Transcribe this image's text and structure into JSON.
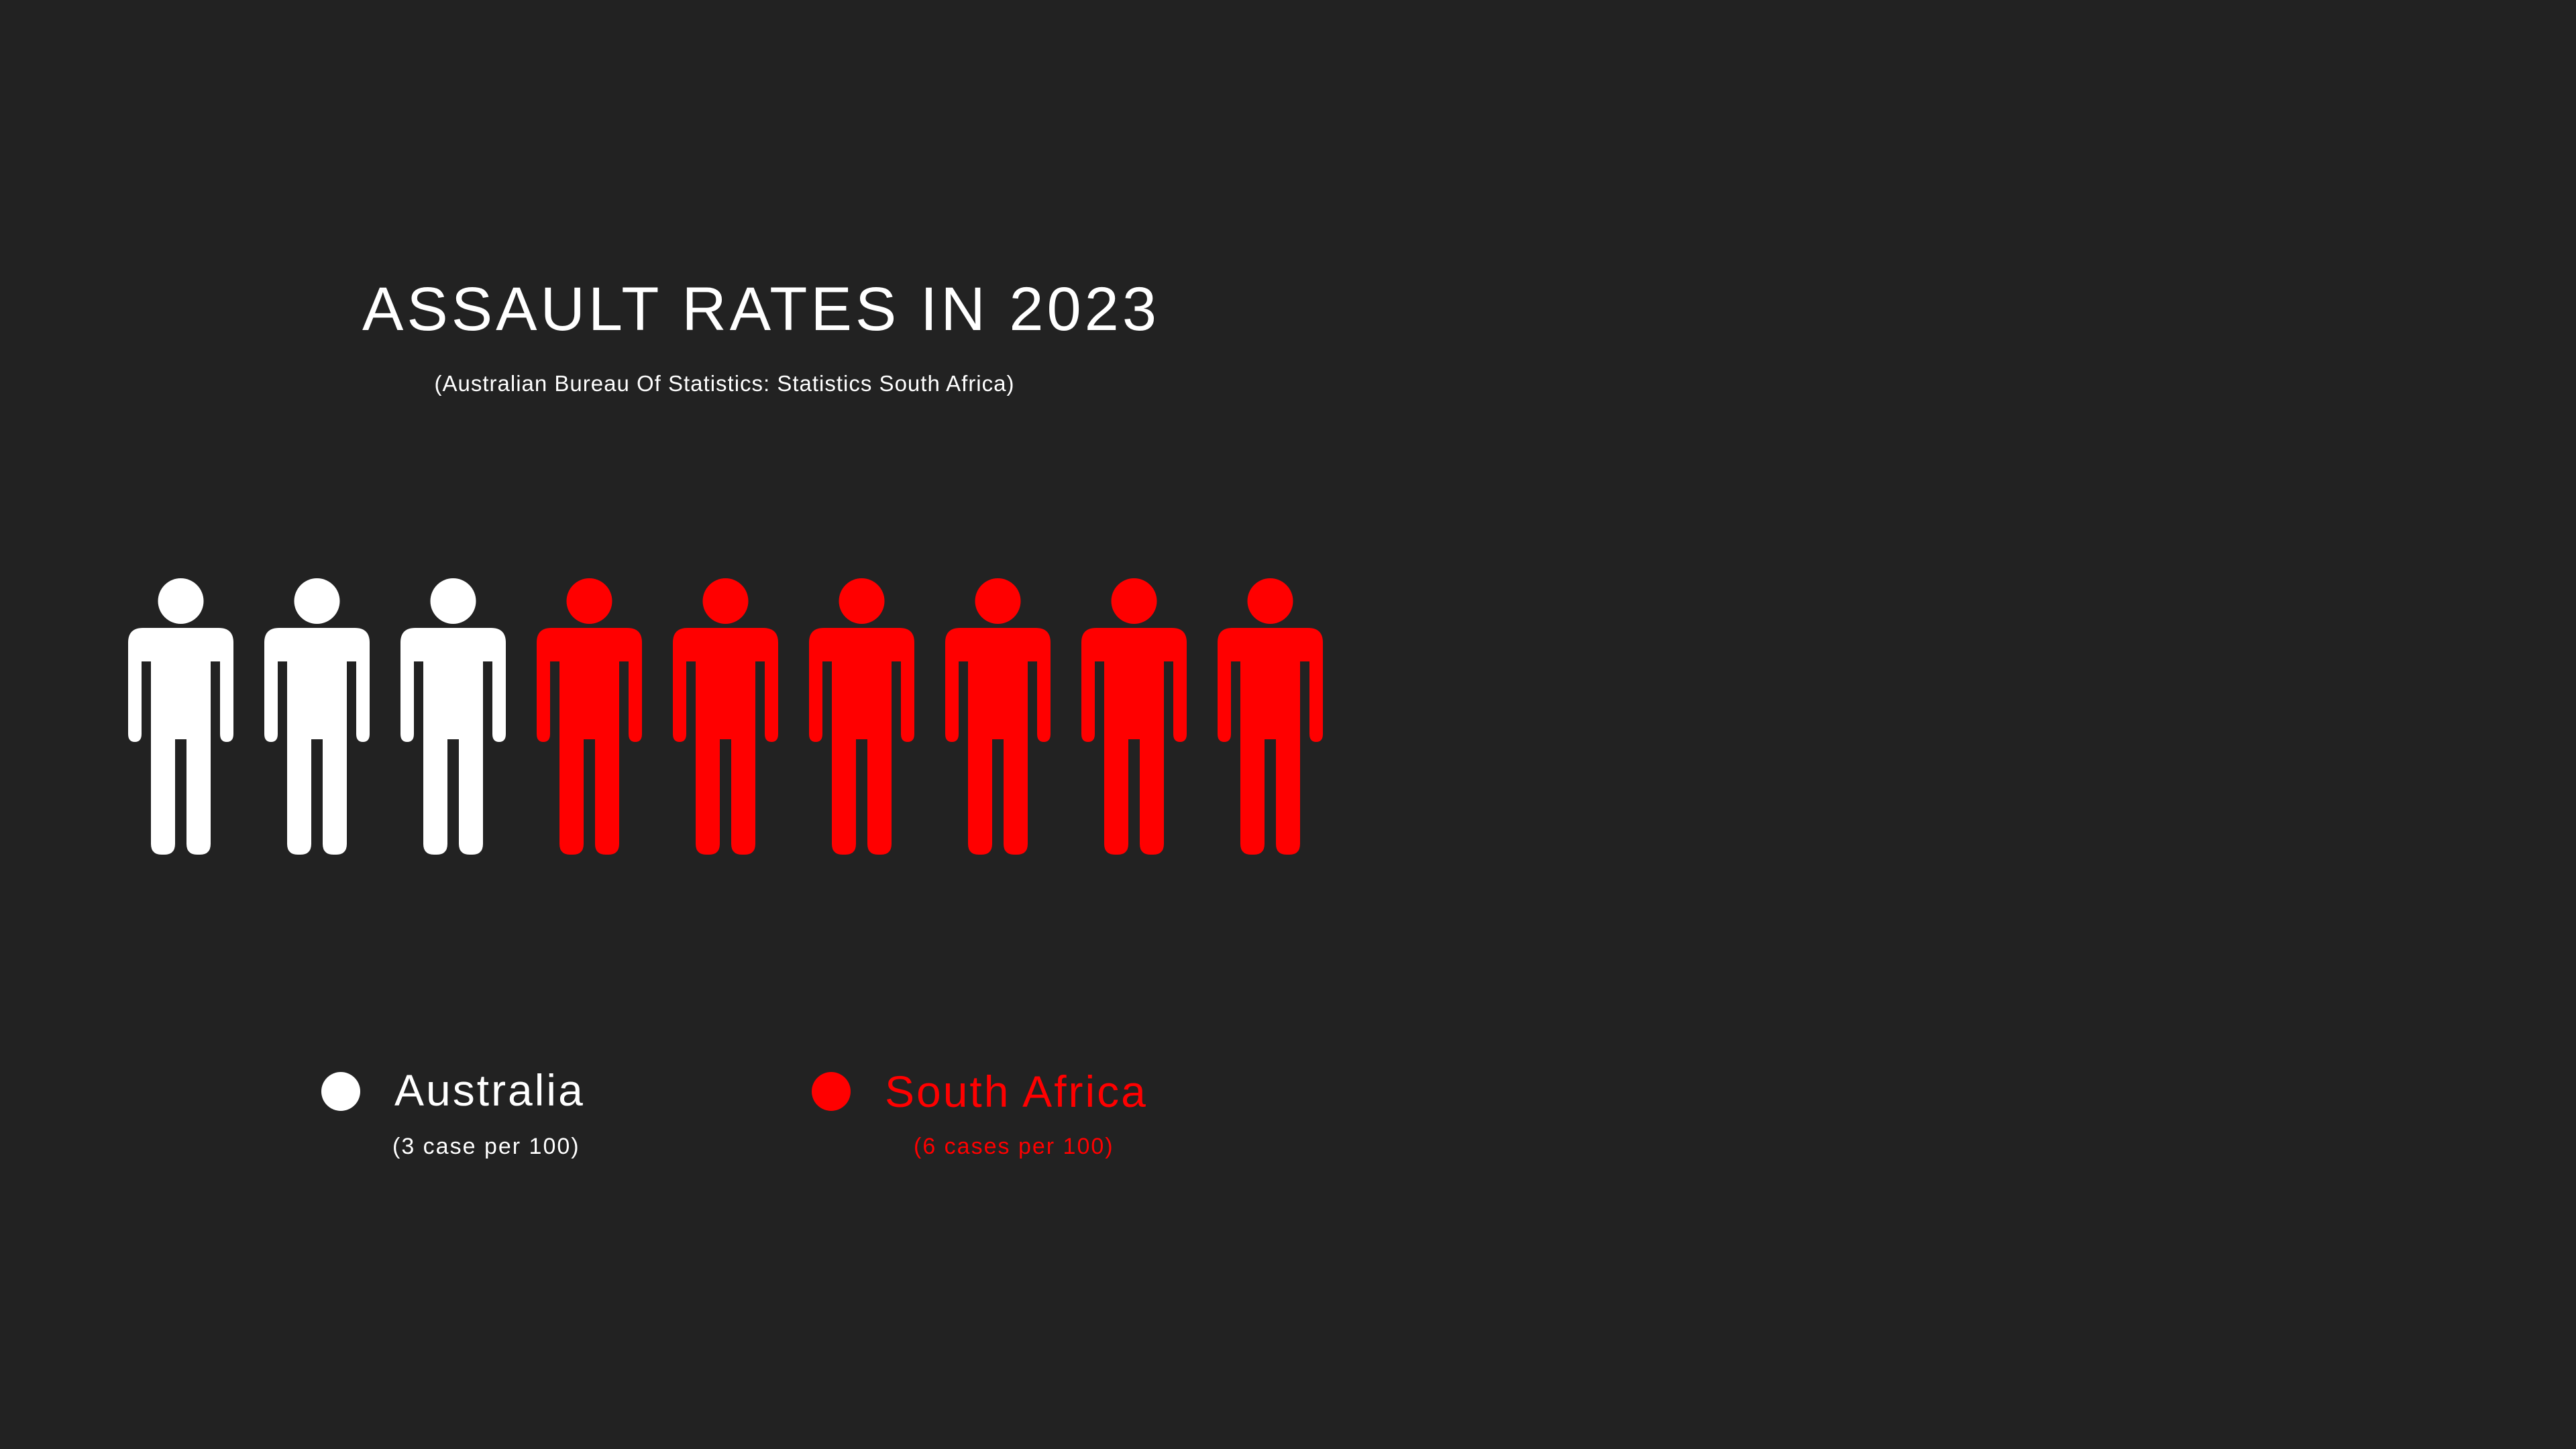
{
  "colors": {
    "background": "#222222",
    "australia": "#ffffff",
    "south_africa": "#ff0000"
  },
  "header": {
    "title": "ASSAULT RATES IN 2023",
    "subtitle": "(Australian Bureau Of Statistics: Statistics South Africa)"
  },
  "legend": {
    "items": [
      {
        "label": "Australia",
        "note": "(3 case per 100)",
        "color": "#ffffff"
      },
      {
        "label": "South Africa",
        "note": "(6 cases per 100)",
        "color": "#ff0000"
      }
    ]
  },
  "chart_data": {
    "type": "pictogram",
    "title": "ASSAULT RATES IN 2023",
    "subtitle": "(Australian Bureau Of Statistics: Statistics South Africa)",
    "unit": "cases per 100",
    "icon": "person-icon",
    "series": [
      {
        "name": "Australia",
        "value": 3,
        "color": "#ffffff"
      },
      {
        "name": "South Africa",
        "value": 6,
        "color": "#ff0000"
      }
    ],
    "legend_position": "bottom"
  }
}
